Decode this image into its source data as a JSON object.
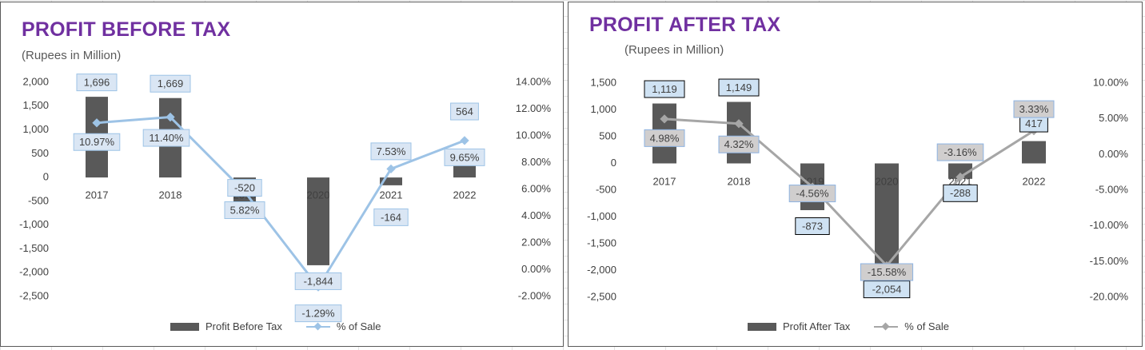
{
  "chart_data": [
    {
      "type": "bar",
      "title": "PROFIT BEFORE TAX",
      "subtitle": "(Rupees in Million)",
      "categories": [
        "2017",
        "2018",
        "2019",
        "2020",
        "2021",
        "2022"
      ],
      "series": [
        {
          "name": "Profit Before Tax",
          "axis": "primary",
          "type": "bar",
          "values": [
            1696,
            1669,
            -520,
            -1844,
            -164,
            564
          ]
        },
        {
          "name": "% of Sale",
          "axis": "secondary",
          "type": "line",
          "values": [
            10.97,
            11.4,
            5.82,
            -1.29,
            7.53,
            9.65
          ]
        }
      ],
      "bar_labels": [
        "1,696",
        "1,669",
        "-520",
        "-1,844",
        "-164",
        "564"
      ],
      "line_labels": [
        "10.97%",
        "11.40%",
        "5.82%",
        "-1.29%",
        "7.53%",
        "9.65%"
      ],
      "y_ticks": [
        "2,000",
        "1,500",
        "1,000",
        "500",
        "0",
        "-500",
        "-1,000",
        "-1,500",
        "-2,000",
        "-2,500"
      ],
      "y_tick_values": [
        2000,
        1500,
        1000,
        500,
        0,
        -500,
        -1000,
        -1500,
        -2000,
        -2500
      ],
      "y2_ticks": [
        "14.00%",
        "12.00%",
        "10.00%",
        "8.00%",
        "6.00%",
        "4.00%",
        "2.00%",
        "0.00%",
        "-2.00%"
      ],
      "y2_tick_values": [
        14,
        12,
        10,
        8,
        6,
        4,
        2,
        0,
        -2
      ],
      "ylim": [
        -2500,
        2000
      ],
      "y2lim": [
        -2,
        14
      ],
      "legend_position": "bottom",
      "grid": false,
      "colors": {
        "bar": "#595959",
        "line": "#9dc3e6",
        "label_fill": "#dae6f4",
        "label_border": "#9dc3e6"
      }
    },
    {
      "type": "bar",
      "title": "PROFIT AFTER TAX",
      "subtitle": "(Rupees in Million)",
      "categories": [
        "2017",
        "2018",
        "2019",
        "2020",
        "2021",
        "2022"
      ],
      "series": [
        {
          "name": "Profit After Tax",
          "axis": "primary",
          "type": "bar",
          "values": [
            1119,
            1149,
            -873,
            -2054,
            -288,
            417
          ]
        },
        {
          "name": "% of Sale",
          "axis": "secondary",
          "type": "line",
          "values": [
            4.98,
            4.32,
            -4.56,
            -15.58,
            -3.16,
            3.33
          ]
        }
      ],
      "bar_labels": [
        "1,119",
        "1,149",
        "-873",
        "-2,054",
        "-288",
        "417"
      ],
      "line_labels": [
        "4.98%",
        "4.32%",
        "-4.56%",
        "-15.58%",
        "-3.16%",
        "3.33%"
      ],
      "y_ticks": [
        "1,500",
        "1,000",
        "500",
        "0",
        "-500",
        "-1,000",
        "-1,500",
        "-2,000",
        "-2,500"
      ],
      "y_tick_values": [
        1500,
        1000,
        500,
        0,
        -500,
        -1000,
        -1500,
        -2000,
        -2500
      ],
      "y2_ticks": [
        "10.00%",
        "5.00%",
        "0.00%",
        "-5.00%",
        "-10.00%",
        "-15.00%",
        "-20.00%"
      ],
      "y2_tick_values": [
        10,
        5,
        0,
        -5,
        -10,
        -15,
        -20
      ],
      "ylim": [
        -2500,
        1500
      ],
      "y2lim": [
        -20,
        10
      ],
      "legend_position": "bottom",
      "grid": false,
      "colors": {
        "bar": "#595959",
        "line": "#a6a6a6",
        "bar_label_fill": "#cfe2f3",
        "bar_label_border": "#000000",
        "line_label_fill": "#d0cece",
        "line_label_border": "#8db3e2"
      }
    }
  ]
}
